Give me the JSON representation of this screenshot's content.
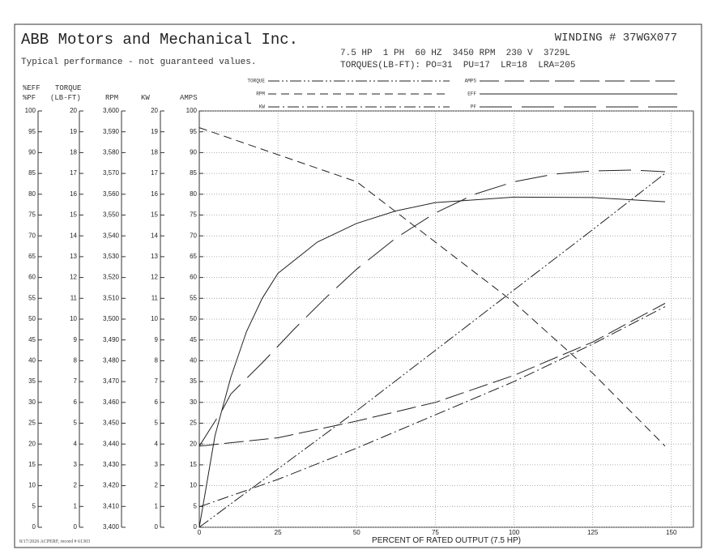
{
  "chart_data": {
    "type": "line",
    "title": "ABB Motors and Mechanical Inc.",
    "subtitle": "Typical performance - not guaranteed values.",
    "annotations": [
      "WINDING # 37WGX077",
      "7.5 HP  1 PH  60 HZ  3450 RPM  230 V  3729L",
      "TORQUES(LB-FT): PO=31  PU=17  LR=18  LRA=205",
      "8/17/2026 ACPERF, record # 61303"
    ],
    "x_label": "PERCENT OF RATED OUTPUT (7.5 HP)",
    "xlim": [
      0,
      157
    ],
    "xticks": [
      0,
      25,
      50,
      75,
      100,
      125,
      150
    ],
    "grid": true,
    "y_axes": [
      {
        "label": [
          "%EFF",
          "%PF"
        ],
        "ylim": [
          0,
          100
        ],
        "yticks": [
          0,
          5,
          10,
          15,
          20,
          25,
          30,
          35,
          40,
          45,
          50,
          55,
          60,
          65,
          70,
          75,
          80,
          85,
          90,
          95,
          100
        ]
      },
      {
        "label": [
          "TORQUE",
          "(LB-FT)"
        ],
        "ylim": [
          0,
          20
        ],
        "yticks": [
          0,
          1,
          2,
          3,
          4,
          5,
          6,
          7,
          8,
          9,
          10,
          11,
          12,
          13,
          14,
          15,
          16,
          17,
          18,
          19,
          20
        ]
      },
      {
        "label": [
          "RPM"
        ],
        "ylim": [
          3400,
          3600
        ],
        "yticks": [
          {
            "value": 3400,
            "label": "3,400"
          },
          {
            "value": 3410,
            "label": "3,410"
          },
          {
            "value": 3420,
            "label": "3,420"
          },
          {
            "value": 3430,
            "label": "3,430"
          },
          {
            "value": 3440,
            "label": "3,440"
          },
          {
            "value": 3450,
            "label": "3,450"
          },
          {
            "value": 3460,
            "label": "3,460"
          },
          {
            "value": 3470,
            "label": "3,470"
          },
          {
            "value": 3480,
            "label": "3,480"
          },
          {
            "value": 3490,
            "label": "3,490"
          },
          {
            "value": 3500,
            "label": "3,500"
          },
          {
            "value": 3510,
            "label": "3,510"
          },
          {
            "value": 3520,
            "label": "3,520"
          },
          {
            "value": 3530,
            "label": "3,530"
          },
          {
            "value": 3540,
            "label": "3,540"
          },
          {
            "value": 3550,
            "label": "3,550"
          },
          {
            "value": 3560,
            "label": "3,560"
          },
          {
            "value": 3570,
            "label": "3,570"
          },
          {
            "value": 3580,
            "label": "3,580"
          },
          {
            "value": 3590,
            "label": "3,590"
          },
          {
            "value": 3600,
            "label": "3,600"
          }
        ]
      },
      {
        "label": [
          "KW"
        ],
        "ylim": [
          0,
          20
        ],
        "yticks": [
          0,
          1,
          2,
          3,
          4,
          5,
          6,
          7,
          8,
          9,
          10,
          11,
          12,
          13,
          14,
          15,
          16,
          17,
          18,
          19,
          20
        ]
      },
      {
        "label": [
          "AMPS"
        ],
        "ylim": [
          0,
          100
        ],
        "yticks": [
          0,
          5,
          10,
          15,
          20,
          25,
          30,
          35,
          40,
          45,
          50,
          55,
          60,
          65,
          70,
          75,
          80,
          85,
          90,
          95,
          100
        ]
      }
    ],
    "series": [
      {
        "name": "TORQUE",
        "color": "#222222",
        "dash": "14 3 2 3 2 3",
        "axis": 1,
        "x": [
          0,
          25,
          50,
          75,
          100,
          125,
          148
        ],
        "values": [
          0,
          2.8,
          5.6,
          8.5,
          11.4,
          14.3,
          17.0
        ]
      },
      {
        "name": "RPM",
        "color": "#222222",
        "dash": "10 6",
        "axis": 2,
        "x": [
          0,
          25,
          50,
          75,
          100,
          125,
          148
        ],
        "values": [
          3592,
          3579,
          3566,
          3537,
          3508,
          3474,
          3439
        ]
      },
      {
        "name": "KW",
        "color": "#222222",
        "dash": "14 4 2 4",
        "axis": 3,
        "x": [
          0,
          25,
          50,
          75,
          100,
          125,
          148
        ],
        "values": [
          0.98,
          2.3,
          3.8,
          5.4,
          7.0,
          8.8,
          10.6
        ]
      },
      {
        "name": "AMPS",
        "color": "#222222",
        "dash": "24 7",
        "axis": 4,
        "x": [
          0,
          25,
          50,
          75,
          100,
          125,
          148
        ],
        "values": [
          19.5,
          21.5,
          25.5,
          30,
          36.5,
          44.5,
          53.8
        ]
      },
      {
        "name": "EFF",
        "color": "#222222",
        "dash": "none",
        "axis": 0,
        "x": [
          0,
          5,
          10,
          15,
          20,
          25,
          37.5,
          50,
          62.5,
          75,
          100,
          125,
          148
        ],
        "values": [
          0,
          22,
          36,
          47,
          55,
          61,
          68.5,
          73,
          76,
          78,
          79.3,
          79.2,
          78.2
        ]
      },
      {
        "name": "PF",
        "color": "#222222",
        "dash": "40 12",
        "axis": 0,
        "x": [
          0,
          7.5,
          10,
          20,
          30,
          40,
          50,
          62.5,
          75,
          87.5,
          100,
          112.5,
          125,
          137.5,
          148
        ],
        "values": [
          19.5,
          28.4,
          32,
          39.5,
          47.5,
          55,
          62,
          69.5,
          75.5,
          80,
          83,
          84.8,
          85.6,
          85.8,
          85.4
        ]
      }
    ]
  }
}
